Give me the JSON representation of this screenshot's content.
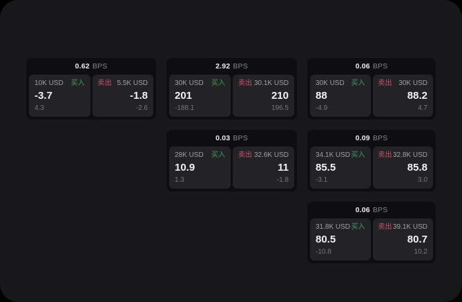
{
  "colors": {
    "buy_green": "#3f9e5b",
    "sell_pink": "#c9536f",
    "window_bg": "#18181a",
    "card_bg": "#0e0e10",
    "panel_bg": "#232326"
  },
  "labels": {
    "bps_unit": "BPS",
    "buy": "买入",
    "sell": "卖出"
  },
  "cards": [
    {
      "bps": "0.62",
      "buy": {
        "amount": "10K USD",
        "value": "-3.7",
        "sub": "4.3"
      },
      "sell": {
        "amount": "5.5K USD",
        "value": "-1.8",
        "sub": "-2.6"
      }
    },
    {
      "bps": "2.92",
      "buy": {
        "amount": "30K USD",
        "value": "201",
        "sub": "-188.1"
      },
      "sell": {
        "amount": "30.1K USD",
        "value": "210",
        "sub": "196.5"
      }
    },
    {
      "bps": "0.06",
      "buy": {
        "amount": "30K USD",
        "value": "88",
        "sub": "-4.9"
      },
      "sell": {
        "amount": "30K USD",
        "value": "88.2",
        "sub": "4.7"
      }
    },
    {
      "bps": "0.03",
      "buy": {
        "amount": "28K USD",
        "value": "10.9",
        "sub": "1.3"
      },
      "sell": {
        "amount": "32.6K USD",
        "value": "11",
        "sub": "-1.8"
      }
    },
    {
      "bps": "0.09",
      "buy": {
        "amount": "34.1K USD",
        "value": "85.5",
        "sub": "-3.1"
      },
      "sell": {
        "amount": "32.8K USD",
        "value": "85.8",
        "sub": "3.0"
      }
    },
    {
      "bps": "0.06",
      "buy": {
        "amount": "31.8K USD",
        "value": "80.5",
        "sub": "-10.8"
      },
      "sell": {
        "amount": "39.1K USD",
        "value": "80.7",
        "sub": "10.2"
      }
    }
  ]
}
